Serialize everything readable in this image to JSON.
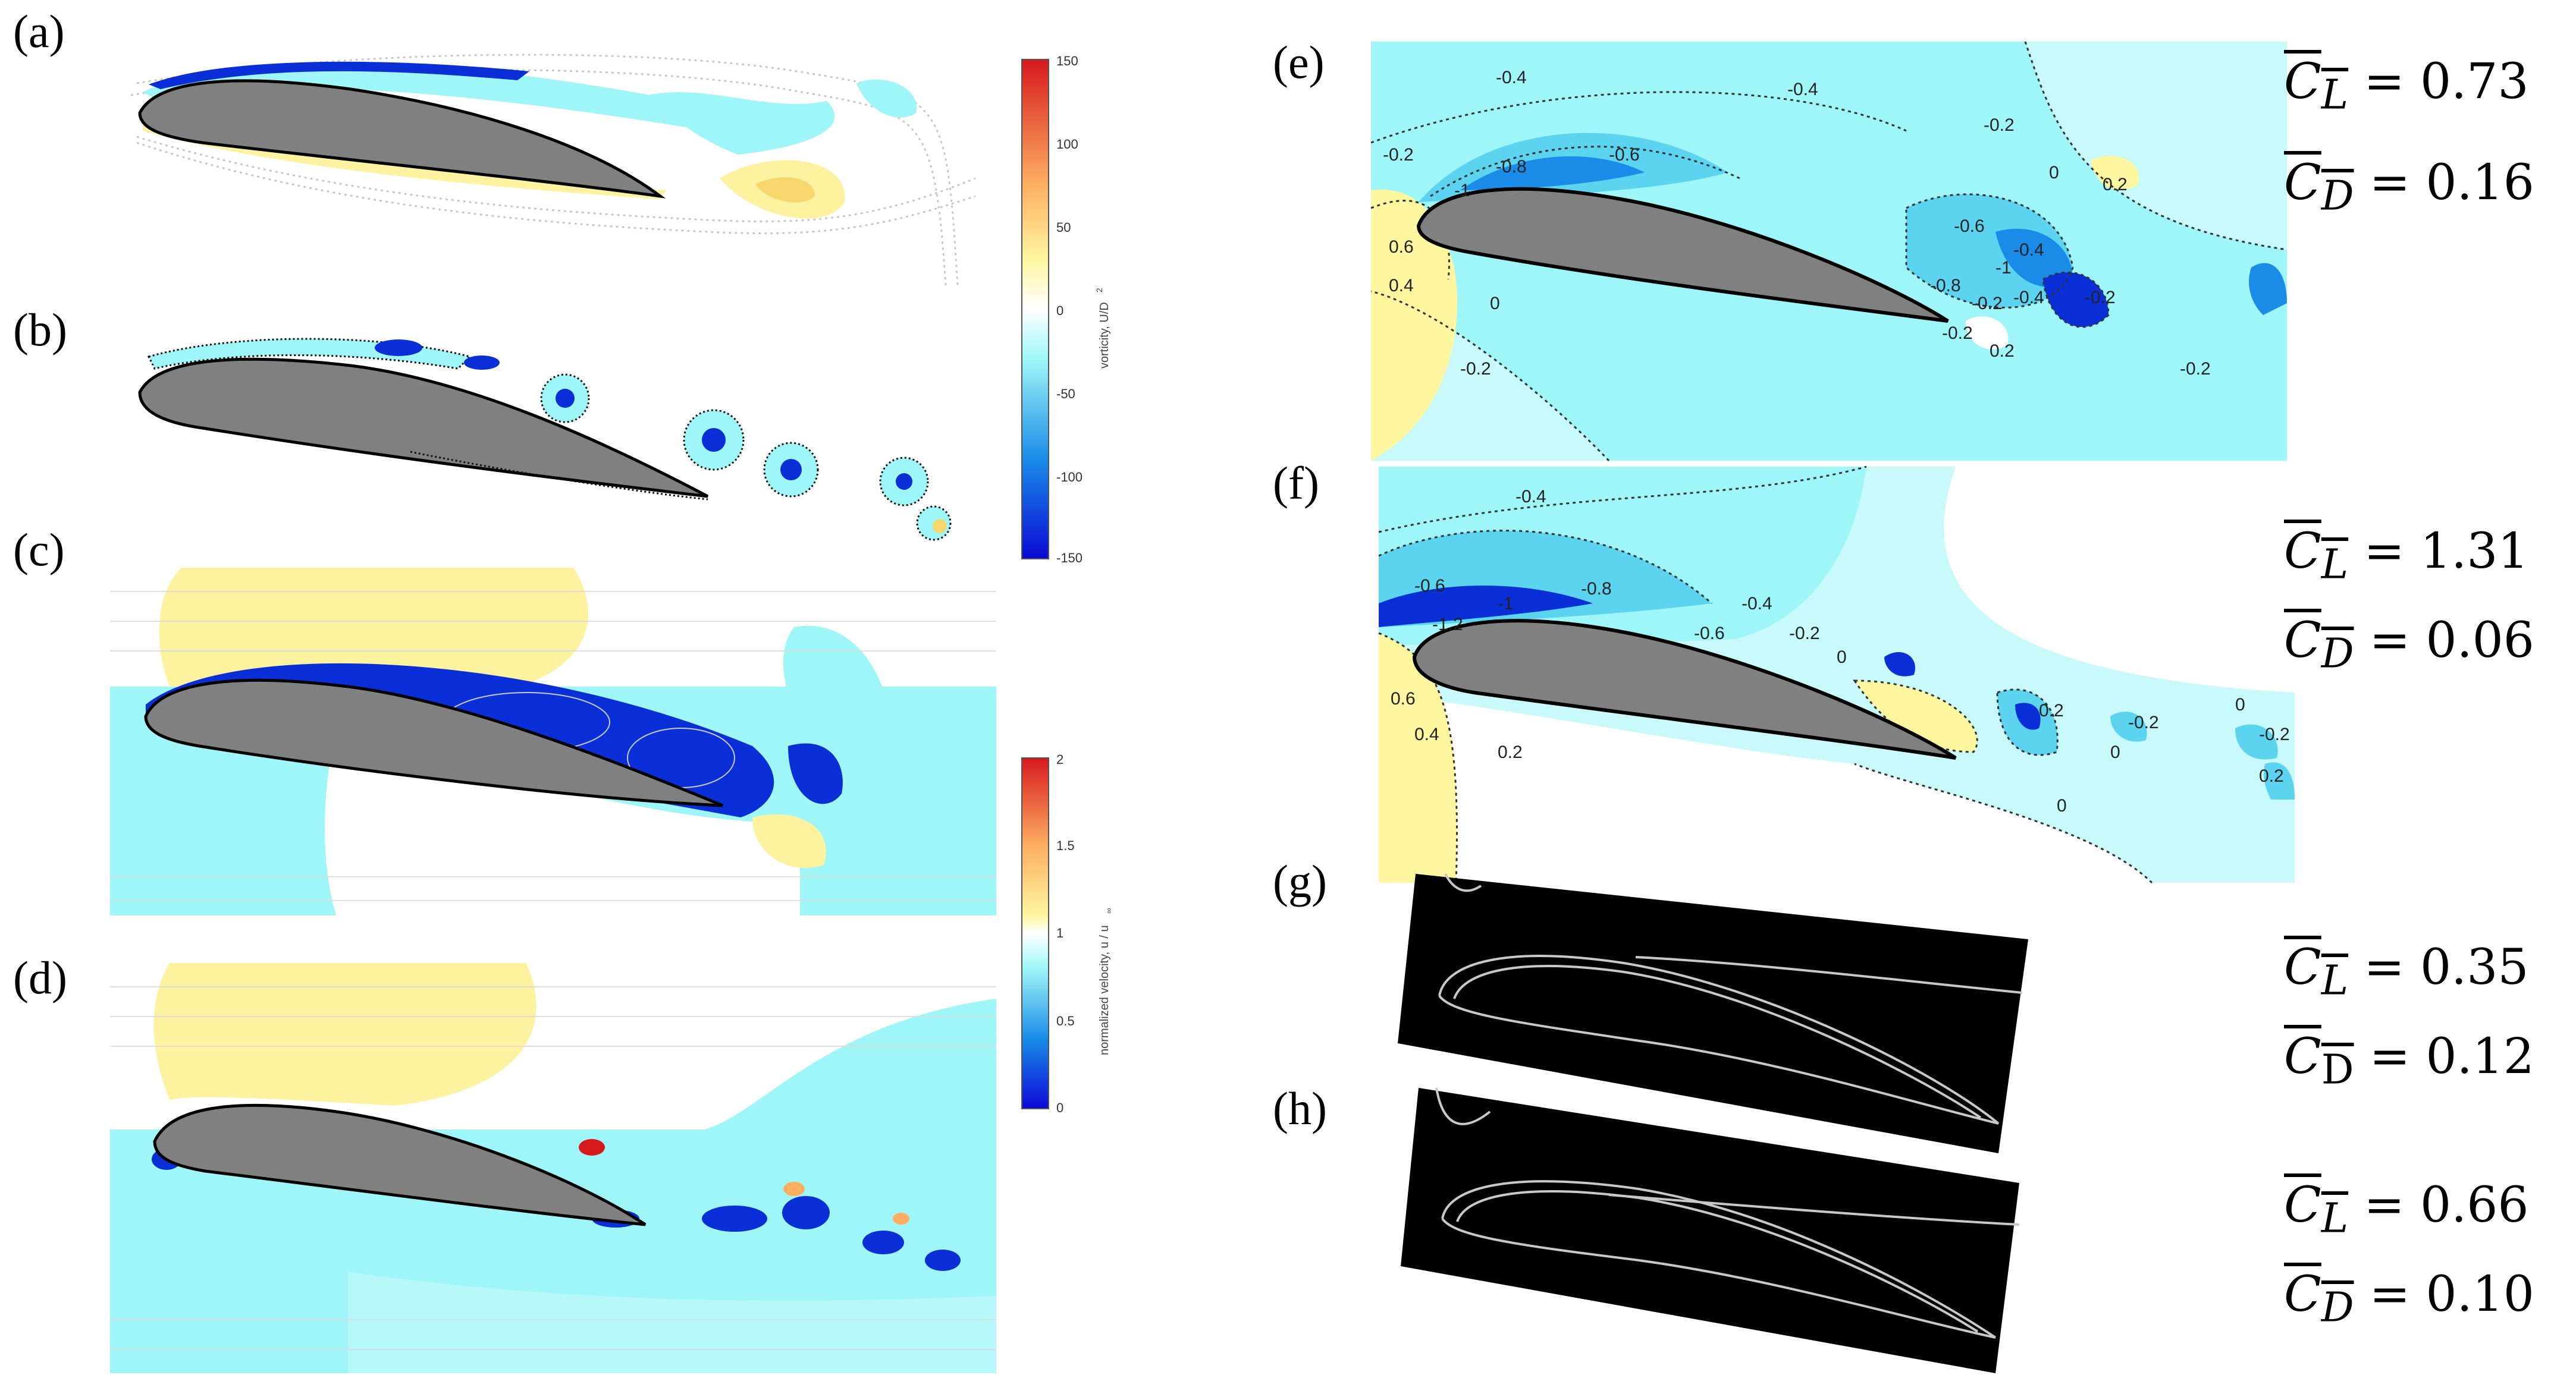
{
  "panels": {
    "a": {
      "label": "(a)"
    },
    "b": {
      "label": "(b)"
    },
    "c": {
      "label": "(c)"
    },
    "d": {
      "label": "(d)"
    },
    "e": {
      "label": "(e)",
      "cl": "= 0.73",
      "cd": "= 0.16",
      "contours": [
        "-0.4",
        "-0.4",
        "-0.2",
        "-0.6",
        "-0.8",
        "-1",
        "-0.2",
        "0.6",
        "0.4",
        "0",
        "-0.2",
        "0",
        "0.2",
        "-0.6",
        "-0.4",
        "-1",
        "-0.8",
        "-0.2",
        "-0.4",
        "-0.2",
        "0.2",
        "-0.2",
        "-0.2"
      ]
    },
    "f": {
      "label": "(f)",
      "cl": "= 1.31",
      "cd": "= 0.06",
      "contours": [
        "-0.4",
        "-0.6",
        "-0.8",
        "-1",
        "-1.2",
        "-0.4",
        "-0.6",
        "-0.2",
        "0",
        "0.6",
        "0.4",
        "0.2",
        "0.2",
        "0",
        "-0.2",
        "-0.2",
        "0",
        "0",
        "0.2"
      ]
    },
    "g": {
      "label": "(g)",
      "cl": "= 0.35",
      "cd": "= 0.12"
    },
    "h": {
      "label": "(h)",
      "cl": "= 0.66",
      "cd": "= 0.10"
    }
  },
  "symbols": {
    "cl": "C",
    "cl_sub": "L",
    "cd": "C",
    "cd_sub": "D",
    "cd_sub_g": "D"
  },
  "colorbar_vorticity": {
    "title": "vorticity, U/D",
    "title_sup": "2",
    "ticks": [
      "150",
      "100",
      "50",
      "0",
      "-50",
      "-100",
      "-150"
    ]
  },
  "colorbar_velocity": {
    "title": "normalized velocity, u / u",
    "title_sub": "∞",
    "ticks": [
      "2",
      "1.5",
      "1",
      "0.5",
      "0"
    ]
  },
  "colors": {
    "airfoil": "#808080",
    "cyan": "#9ff6f8",
    "light_cyan": "#c8fafb",
    "yellow": "#fdf2a0",
    "blue": "#0a2fd6"
  }
}
